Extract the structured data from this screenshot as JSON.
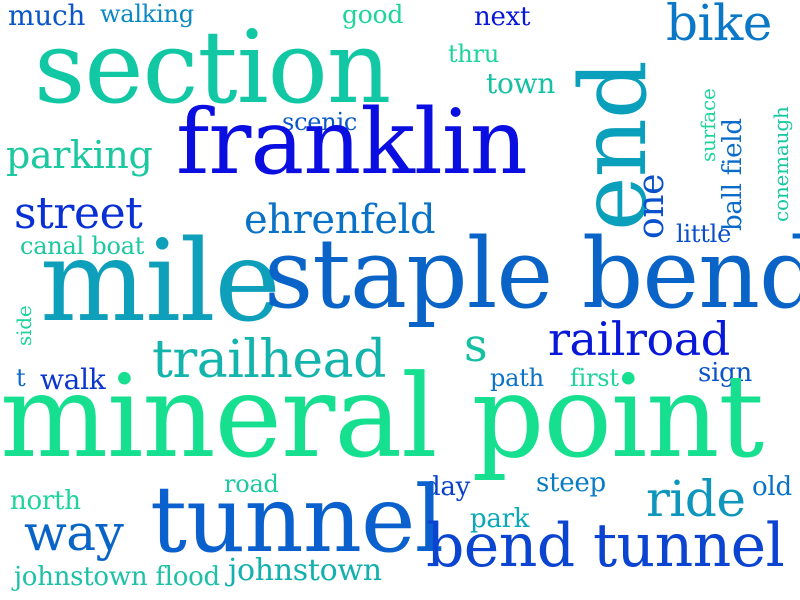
{
  "words": [
    {
      "text": "much",
      "color": "#0b56c8"
    },
    {
      "text": "walking",
      "color": "#0a88c4"
    },
    {
      "text": "good",
      "color": "#1fd49a"
    },
    {
      "text": "next",
      "color": "#0818d8"
    },
    {
      "text": "bike",
      "color": "#0a78c6"
    },
    {
      "text": "section",
      "color": "#12c8a4"
    },
    {
      "text": "thru",
      "color": "#1ed49c"
    },
    {
      "text": "town",
      "color": "#16c0a4"
    },
    {
      "text": "end",
      "color": "#0aa0bc"
    },
    {
      "text": "surface",
      "color": "#1ed49c"
    },
    {
      "text": "conemaugh",
      "color": "#16c8a2"
    },
    {
      "text": "ball field",
      "color": "#0a6cc8"
    },
    {
      "text": "scenic",
      "color": "#0a58c8"
    },
    {
      "text": "franklin",
      "color": "#0a0ee0"
    },
    {
      "text": "parking",
      "color": "#1bc8a0"
    },
    {
      "text": "one",
      "color": "#0850cc"
    },
    {
      "text": "street",
      "color": "#0830d4"
    },
    {
      "text": "ehrenfeld",
      "color": "#0a72c6"
    },
    {
      "text": "little",
      "color": "#0a4ecc"
    },
    {
      "text": "canal boat",
      "color": "#1ec8a0"
    },
    {
      "text": "mile",
      "color": "#0ea0ba"
    },
    {
      "text": "staple bend",
      "color": "#0a64c8"
    },
    {
      "text": "side",
      "color": "#1ed49c"
    },
    {
      "text": "railroad",
      "color": "#0818d8"
    },
    {
      "text": "s",
      "color": "#16c0a2"
    },
    {
      "text": "trailhead",
      "color": "#12b4ac"
    },
    {
      "text": "t",
      "color": "#0a66c8"
    },
    {
      "text": "walk",
      "color": "#0a36d0"
    },
    {
      "text": "path",
      "color": "#0a72c6"
    },
    {
      "text": "first",
      "color": "#1ed49c"
    },
    {
      "text": "sign",
      "color": "#0a56c8"
    },
    {
      "text": "mineral point",
      "color": "#16e090"
    },
    {
      "text": "road",
      "color": "#1ec8a0"
    },
    {
      "text": "day",
      "color": "#0a40cc"
    },
    {
      "text": "steep",
      "color": "#0a7cc4"
    },
    {
      "text": "old",
      "color": "#0a72c6"
    },
    {
      "text": "ride",
      "color": "#0e96bc"
    },
    {
      "text": "north",
      "color": "#1ed49c"
    },
    {
      "text": "way",
      "color": "#0a64c8"
    },
    {
      "text": "tunnel",
      "color": "#0a60cc"
    },
    {
      "text": "park",
      "color": "#0aa8b8"
    },
    {
      "text": "bend tunnel",
      "color": "#0a44d0"
    },
    {
      "text": "johnstown flood",
      "color": "#1ec0a6"
    },
    {
      "text": "johnstown",
      "color": "#12b0ae"
    }
  ]
}
